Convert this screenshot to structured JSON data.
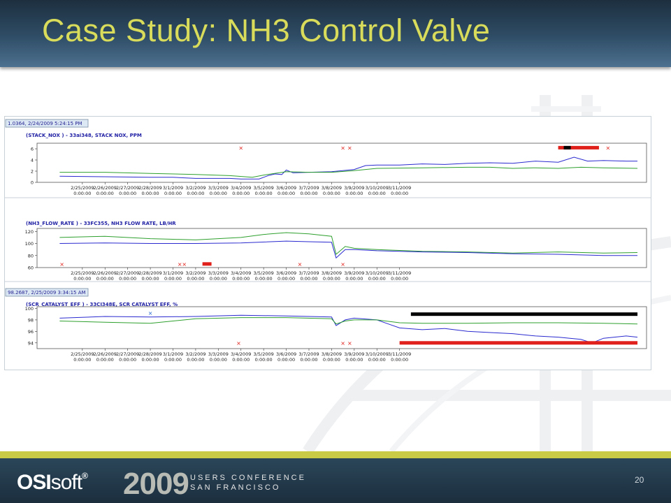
{
  "slide": {
    "title": "Case Study: NH3 Control Valve",
    "page_number": "20"
  },
  "footer": {
    "logo_bold": "OSI",
    "logo_light": "soft",
    "logo_mark": "®",
    "year": "2009",
    "conference_line1": "USERS CONFERENCE",
    "conference_line2": "SAN FRANCISCO"
  },
  "colors": {
    "title": "#d8dc5a",
    "blue_series": "#2a2ad0",
    "green_series": "#2ea02e",
    "annotation_red": "#e0201a",
    "annotation_black": "#000000"
  },
  "chart_data": [
    {
      "type": "line",
      "cursor_label": "1.0364, 2/24/2009 5:24:15 PM",
      "title": "(STACK_NOX ) - 33ai348, STACK NOX, PPM",
      "x_ticks": [
        "2/25/2009",
        "2/26/2009",
        "2/27/2009",
        "2/28/2009",
        "3/1/2009",
        "3/2/2009",
        "3/3/2009",
        "3/4/2009",
        "3/5/2009",
        "3/6/2009",
        "3/7/2009",
        "3/8/2009",
        "3/9/2009",
        "3/10/2009",
        "3/11/2009"
      ],
      "x_tick_time": "0:00:00",
      "y_ticks": [
        0,
        2,
        4,
        6
      ],
      "ylim": [
        0,
        7
      ],
      "series": [
        {
          "color": "blue",
          "points": [
            [
              0,
              1.1
            ],
            [
              2,
              1.0
            ],
            [
              4,
              0.9
            ],
            [
              5,
              0.9
            ],
            [
              6,
              0.7
            ],
            [
              7.5,
              0.7
            ],
            [
              8,
              0.6
            ],
            [
              8.8,
              0.6
            ],
            [
              9.2,
              1.2
            ],
            [
              9.5,
              1.5
            ],
            [
              9.8,
              1.4
            ],
            [
              10,
              2.2
            ],
            [
              10.3,
              1.7
            ],
            [
              11,
              1.8
            ],
            [
              12,
              1.9
            ],
            [
              13,
              2.3
            ],
            [
              13.5,
              3.0
            ],
            [
              14,
              3.1
            ],
            [
              15,
              3.1
            ],
            [
              16,
              3.3
            ],
            [
              17,
              3.2
            ],
            [
              18,
              3.4
            ],
            [
              19,
              3.5
            ],
            [
              20,
              3.4
            ],
            [
              21,
              3.8
            ],
            [
              22,
              3.6
            ],
            [
              22.7,
              4.5
            ],
            [
              23.3,
              3.8
            ],
            [
              24,
              3.9
            ],
            [
              25,
              3.8
            ],
            [
              25.5,
              3.8
            ]
          ]
        },
        {
          "color": "green",
          "points": [
            [
              0,
              1.8
            ],
            [
              2,
              1.8
            ],
            [
              4,
              1.6
            ],
            [
              6,
              1.4
            ],
            [
              7.5,
              1.2
            ],
            [
              8.5,
              0.9
            ],
            [
              9,
              1.3
            ],
            [
              10,
              1.9
            ],
            [
              11,
              1.8
            ],
            [
              12,
              1.8
            ],
            [
              13,
              2.1
            ],
            [
              14,
              2.5
            ],
            [
              16,
              2.6
            ],
            [
              18,
              2.7
            ],
            [
              19,
              2.7
            ],
            [
              20,
              2.5
            ],
            [
              21,
              2.6
            ],
            [
              22,
              2.5
            ],
            [
              23,
              2.7
            ],
            [
              24,
              2.6
            ],
            [
              25.5,
              2.5
            ]
          ]
        }
      ],
      "annotations": {
        "red_x": [
          [
            8,
            6.2
          ],
          [
            12.5,
            6.2
          ],
          [
            12.8,
            6.2
          ],
          [
            24.2,
            6.2
          ]
        ],
        "bands": [
          {
            "from": 22.0,
            "to": 23.8,
            "y": 6.2,
            "color": "mixed"
          }
        ]
      }
    },
    {
      "type": "line",
      "cursor_label": "",
      "title": "(NH3_FLOW_RATE ) - 33FC355, NH3 FLOW RATE, LB/HR",
      "x_ticks": [
        "2/25/2009",
        "2/26/2009",
        "2/27/2009",
        "2/28/2009",
        "3/1/2009",
        "3/2/2009",
        "3/3/2009",
        "3/4/2009",
        "3/5/2009",
        "3/6/2009",
        "3/7/2009",
        "3/8/2009",
        "3/9/2009",
        "3/10/2009",
        "3/11/2009"
      ],
      "x_tick_time": "0:00:00",
      "y_ticks": [
        60,
        80,
        100,
        120
      ],
      "ylim": [
        60,
        125
      ],
      "series": [
        {
          "color": "green",
          "points": [
            [
              0,
              110
            ],
            [
              2,
              112
            ],
            [
              4,
              108
            ],
            [
              5,
              107
            ],
            [
              6,
              106
            ],
            [
              8,
              110
            ],
            [
              9,
              115
            ],
            [
              10,
              118
            ],
            [
              11,
              116
            ],
            [
              12,
              112
            ],
            [
              12.2,
              82
            ],
            [
              12.6,
              95
            ],
            [
              13,
              92
            ],
            [
              14,
              90
            ],
            [
              16,
              87
            ],
            [
              18,
              86
            ],
            [
              20,
              84
            ],
            [
              22,
              86
            ],
            [
              24,
              84
            ],
            [
              25.5,
              85
            ]
          ]
        },
        {
          "color": "blue",
          "points": [
            [
              0,
              100
            ],
            [
              2,
              101
            ],
            [
              4,
              100
            ],
            [
              6,
              100
            ],
            [
              8,
              101
            ],
            [
              10,
              104
            ],
            [
              11,
              103
            ],
            [
              12,
              102
            ],
            [
              12.2,
              76
            ],
            [
              12.6,
              90
            ],
            [
              13,
              90
            ],
            [
              14,
              88
            ],
            [
              16,
              86
            ],
            [
              18,
              85
            ],
            [
              20,
              83
            ],
            [
              22,
              82
            ],
            [
              24,
              80
            ],
            [
              25.5,
              80
            ]
          ]
        }
      ],
      "annotations": {
        "red_x": [
          [
            0.1,
            66
          ],
          [
            5.3,
            66
          ],
          [
            5.5,
            66
          ],
          [
            10.6,
            66
          ],
          [
            12.5,
            66
          ]
        ],
        "bands": [
          {
            "from": 6.3,
            "to": 6.7,
            "y": 66,
            "color": "red"
          }
        ]
      }
    },
    {
      "type": "line",
      "cursor_label": "98.2687, 2/25/2009 3:34:15 AM",
      "title": "(SCR_CATALYST_EFF ) - 33CI348E, SCR CATALYST EFF, %",
      "x_ticks": [
        "2/25/2009",
        "2/26/2009",
        "2/27/2009",
        "2/28/2009",
        "3/1/2009",
        "3/2/2009",
        "3/3/2009",
        "3/4/2009",
        "3/5/2009",
        "3/6/2009",
        "3/7/2009",
        "3/8/2009",
        "3/9/2009",
        "3/10/2009",
        "3/11/2009"
      ],
      "x_tick_time": "0:00:00",
      "y_ticks": [
        94,
        96,
        98,
        100
      ],
      "ylim": [
        93,
        100.3
      ],
      "series": [
        {
          "color": "blue",
          "points": [
            [
              0,
              98.3
            ],
            [
              2,
              98.6
            ],
            [
              4,
              98.5
            ],
            [
              6,
              98.6
            ],
            [
              8,
              98.8
            ],
            [
              10,
              98.7
            ],
            [
              12,
              98.5
            ],
            [
              12.2,
              97.0
            ],
            [
              12.6,
              98.0
            ],
            [
              13,
              98.3
            ],
            [
              14,
              98.0
            ],
            [
              14.5,
              97.3
            ],
            [
              15,
              96.6
            ],
            [
              16,
              96.3
            ],
            [
              17,
              96.5
            ],
            [
              18,
              96.0
            ],
            [
              19,
              95.8
            ],
            [
              20,
              95.6
            ],
            [
              21,
              95.2
            ],
            [
              22,
              95.0
            ],
            [
              23,
              94.6
            ],
            [
              23.5,
              94.0
            ],
            [
              24,
              94.8
            ],
            [
              25,
              95.2
            ],
            [
              25.5,
              95.0
            ]
          ]
        },
        {
          "color": "green",
          "points": [
            [
              0,
              97.8
            ],
            [
              2,
              97.6
            ],
            [
              4,
              97.4
            ],
            [
              6,
              98.2
            ],
            [
              8,
              98.4
            ],
            [
              10,
              98.4
            ],
            [
              12,
              98.2
            ],
            [
              12.2,
              97.3
            ],
            [
              12.6,
              97.8
            ],
            [
              13,
              98.0
            ],
            [
              14,
              98.0
            ],
            [
              15,
              97.5
            ],
            [
              16,
              97.4
            ],
            [
              18,
              97.4
            ],
            [
              20,
              97.5
            ],
            [
              22,
              97.5
            ],
            [
              24,
              97.4
            ],
            [
              25.5,
              97.3
            ]
          ]
        }
      ],
      "annotations": {
        "red_x": [
          [
            7.9,
            94
          ],
          [
            12.5,
            94
          ],
          [
            12.8,
            94
          ]
        ],
        "blue_x": [
          [
            4,
            99.2
          ]
        ],
        "bands": [
          {
            "from": 15.0,
            "to": 25.5,
            "y": 94,
            "color": "red"
          },
          {
            "from": 15.5,
            "to": 25.5,
            "y": 99,
            "color": "black"
          }
        ]
      }
    }
  ]
}
